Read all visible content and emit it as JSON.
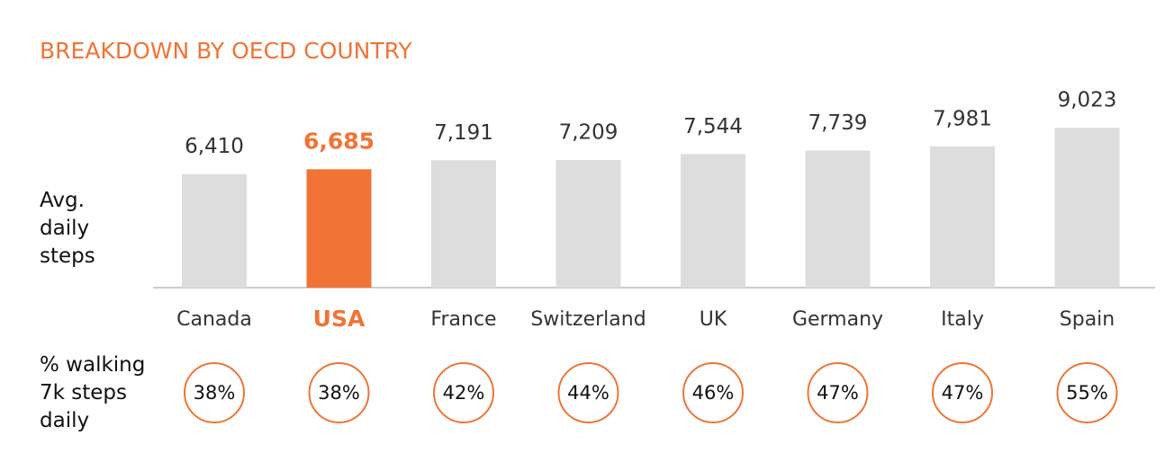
{
  "chart_data": {
    "type": "bar",
    "title": "BREAKDOWN BY OECD COUNTRY",
    "categories": [
      "Canada",
      "USA",
      "France",
      "Switzerland",
      "UK",
      "Germany",
      "Italy",
      "Spain"
    ],
    "highlight": "USA",
    "color": "#dddddd",
    "highlight_color": "#f07436",
    "ylim": [
      0,
      10000
    ],
    "series": [
      {
        "name": "Avg. daily steps",
        "values": [
          6410,
          6685,
          7191,
          7209,
          7544,
          7739,
          7981,
          9023
        ],
        "value_labels": [
          "6,410",
          "6,685",
          "7,191",
          "7,209",
          "7,544",
          "7,739",
          "7,981",
          "9,023"
        ]
      },
      {
        "name": "% walking 7k steps daily",
        "values": [
          38,
          38,
          42,
          44,
          46,
          47,
          47,
          55
        ],
        "value_labels": [
          "38%",
          "38%",
          "42%",
          "44%",
          "46%",
          "47%",
          "47%",
          "55%"
        ]
      }
    ]
  }
}
